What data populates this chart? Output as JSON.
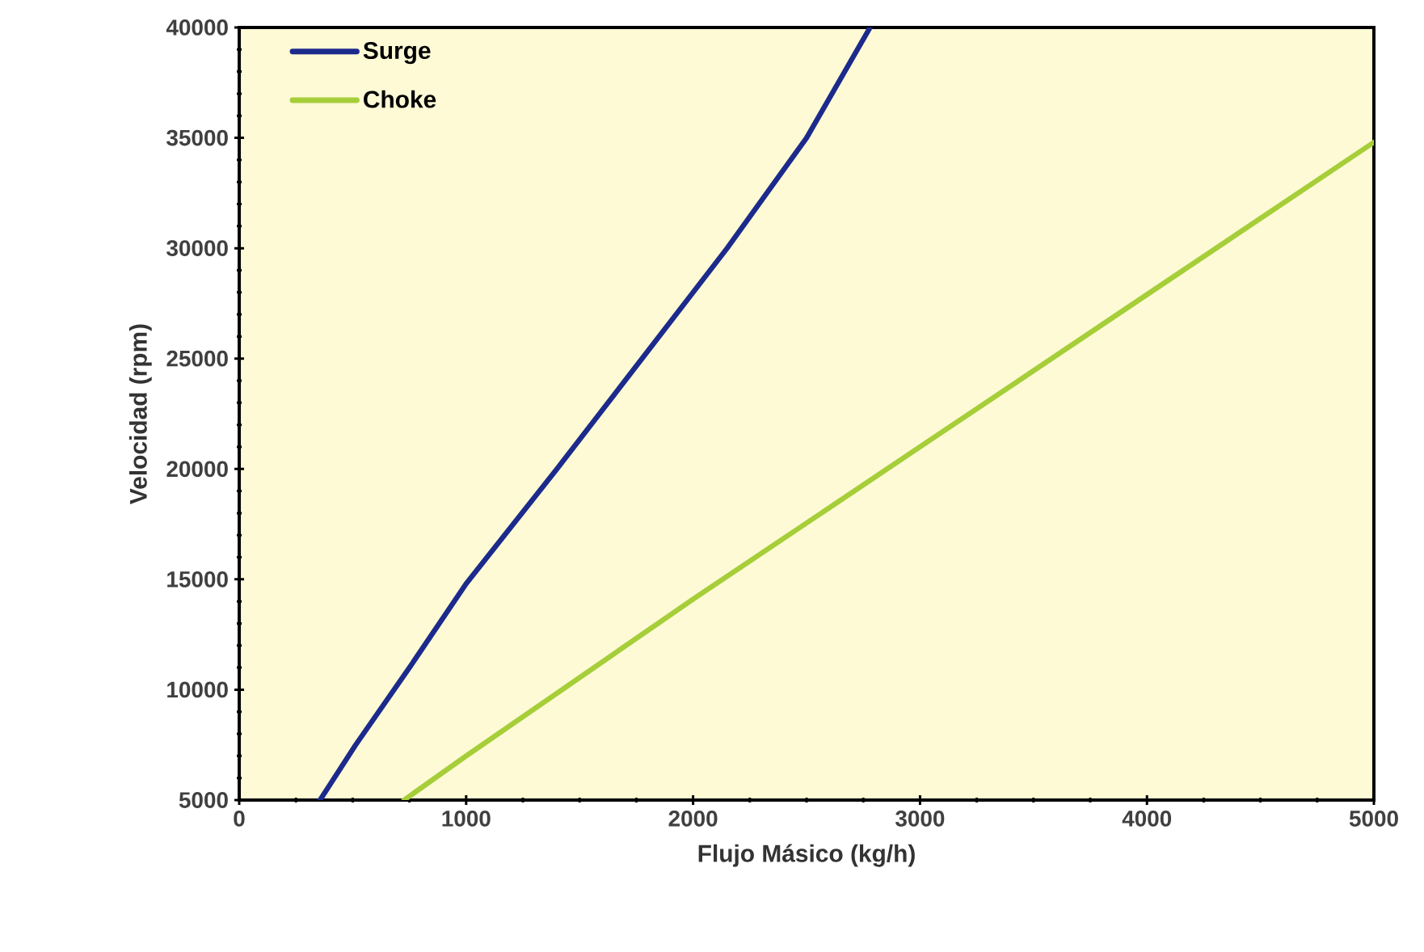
{
  "chart_data": {
    "type": "line",
    "xlabel": "Flujo Másico (kg/h)",
    "ylabel": "Velocidad (rpm)",
    "series": [
      {
        "name": "Surge",
        "color": "#1c2a8c",
        "x": [
          356,
          513,
          750,
          1000,
          1400,
          1700,
          2150,
          2500,
          2780
        ],
        "values": [
          5000,
          7500,
          11000,
          14800,
          20000,
          24000,
          30000,
          35000,
          40000
        ]
      },
      {
        "name": "Choke",
        "color": "#a6ce39",
        "x": [
          726,
          1000,
          2000,
          3000,
          4000,
          5000
        ],
        "values": [
          5000,
          7000,
          14100,
          21000,
          27900,
          34800
        ]
      }
    ],
    "xlim": [
      0,
      5000
    ],
    "ylim": [
      5000,
      40000
    ],
    "xticks": [
      0,
      1000,
      2000,
      3000,
      4000,
      5000
    ],
    "yticks": [
      5000,
      10000,
      15000,
      20000,
      25000,
      30000,
      35000,
      40000
    ],
    "grid": false,
    "legend": "top left",
    "marker": "none",
    "line_style": "solid"
  }
}
